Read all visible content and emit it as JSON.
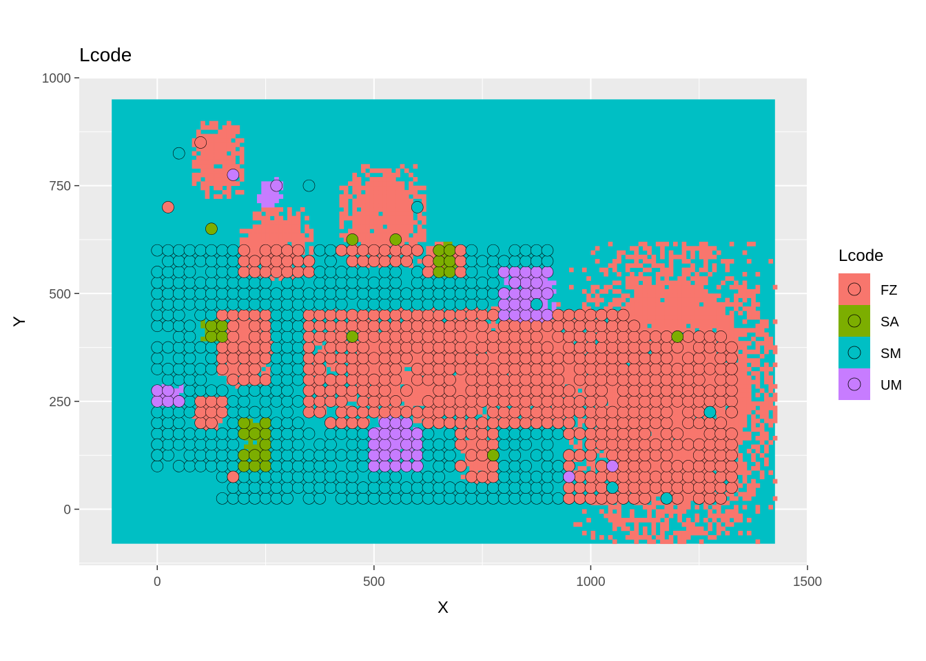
{
  "chart_data": {
    "type": "scatter",
    "title": "Lcode",
    "xlabel": "X",
    "ylabel": "Y",
    "xlim": [
      -180,
      1500
    ],
    "ylim": [
      -130,
      1000
    ],
    "x_ticks": [
      0,
      500,
      1000,
      1500
    ],
    "y_ticks": [
      0,
      250,
      500,
      750,
      1000
    ],
    "x_tick_labels": [
      "0",
      "500",
      "1000",
      "1500"
    ],
    "y_tick_labels": [
      "0",
      "250",
      "500",
      "750",
      "1000"
    ],
    "grid": true,
    "legend": {
      "title": "Lcode",
      "position": "right",
      "entries": [
        {
          "label": "FZ",
          "color": "#F8766D"
        },
        {
          "label": "SA",
          "color": "#7CAE00"
        },
        {
          "label": "SM",
          "color": "#00BFC4"
        },
        {
          "label": "UM",
          "color": "#C77CFF"
        }
      ]
    },
    "raster": {
      "xlim": [
        -105,
        1425
      ],
      "ylim": [
        -80,
        950
      ],
      "background_class": "SM",
      "regions": [
        {
          "class": "FZ",
          "x": [
            950,
            1425
          ],
          "y": [
            -80,
            620
          ]
        },
        {
          "class": "FZ",
          "x": [
            1050,
            1100
          ],
          "y": [
            150,
            420
          ]
        },
        {
          "class": "FZ",
          "x": [
            80,
            200
          ],
          "y": [
            720,
            900
          ]
        },
        {
          "class": "FZ",
          "x": [
            190,
            360
          ],
          "y": [
            530,
            700
          ]
        },
        {
          "class": "FZ",
          "x": [
            420,
            620
          ],
          "y": [
            560,
            800
          ]
        },
        {
          "class": "FZ",
          "x": [
            140,
            270
          ],
          "y": [
            280,
            460
          ]
        },
        {
          "class": "FZ",
          "x": [
            340,
            1060
          ],
          "y": [
            200,
            470
          ]
        },
        {
          "class": "FZ",
          "x": [
            620,
            700
          ],
          "y": [
            540,
            620
          ]
        },
        {
          "class": "FZ",
          "x": [
            700,
            780
          ],
          "y": [
            60,
            200
          ]
        },
        {
          "class": "FZ",
          "x": [
            80,
            160
          ],
          "y": [
            180,
            260
          ]
        },
        {
          "class": "FZ",
          "x": [
            850,
            960
          ],
          "y": [
            200,
            480
          ]
        },
        {
          "class": "UM",
          "x": [
            800,
            920
          ],
          "y": [
            430,
            560
          ]
        },
        {
          "class": "UM",
          "x": [
            500,
            600
          ],
          "y": [
            100,
            220
          ]
        },
        {
          "class": "UM",
          "x": [
            230,
            290
          ],
          "y": [
            700,
            770
          ]
        },
        {
          "class": "UM",
          "x": [
            -10,
            60
          ],
          "y": [
            240,
            290
          ]
        },
        {
          "class": "SA",
          "x": [
            100,
            160
          ],
          "y": [
            380,
            440
          ]
        },
        {
          "class": "SA",
          "x": [
            200,
            260
          ],
          "y": [
            100,
            210
          ]
        },
        {
          "class": "SA",
          "x": [
            650,
            690
          ],
          "y": [
            540,
            620
          ]
        }
      ]
    },
    "points": {
      "grid_step": 25,
      "counts": {
        "FZ": 640,
        "SA": 55,
        "SM": 420,
        "UM": 45
      },
      "sample": [
        {
          "x": 100,
          "y": 850,
          "class": "FZ"
        },
        {
          "x": 50,
          "y": 825,
          "class": "SM"
        },
        {
          "x": 175,
          "y": 775,
          "class": "UM"
        },
        {
          "x": 275,
          "y": 750,
          "class": "UM"
        },
        {
          "x": 350,
          "y": 750,
          "class": "SM"
        },
        {
          "x": 25,
          "y": 700,
          "class": "FZ"
        },
        {
          "x": 600,
          "y": 700,
          "class": "SM"
        },
        {
          "x": 125,
          "y": 650,
          "class": "SA"
        },
        {
          "x": 450,
          "y": 625,
          "class": "SA"
        },
        {
          "x": 550,
          "y": 625,
          "class": "SA"
        },
        {
          "x": 825,
          "y": 525,
          "class": "UM"
        },
        {
          "x": 875,
          "y": 475,
          "class": "SM"
        },
        {
          "x": 450,
          "y": 400,
          "class": "SA"
        },
        {
          "x": 1200,
          "y": 400,
          "class": "SA"
        },
        {
          "x": 1325,
          "y": 325,
          "class": "FZ"
        },
        {
          "x": 1325,
          "y": 225,
          "class": "FZ"
        },
        {
          "x": 1275,
          "y": 225,
          "class": "SM"
        },
        {
          "x": 50,
          "y": 250,
          "class": "UM"
        },
        {
          "x": 0,
          "y": 150,
          "class": "SM"
        },
        {
          "x": 0,
          "y": 125,
          "class": "SM"
        },
        {
          "x": 175,
          "y": 75,
          "class": "FZ"
        },
        {
          "x": 775,
          "y": 125,
          "class": "SA"
        },
        {
          "x": 950,
          "y": 75,
          "class": "UM"
        },
        {
          "x": 1050,
          "y": 50,
          "class": "SM"
        },
        {
          "x": 1175,
          "y": 25,
          "class": "SM"
        },
        {
          "x": 1050,
          "y": 100,
          "class": "UM"
        }
      ]
    }
  }
}
